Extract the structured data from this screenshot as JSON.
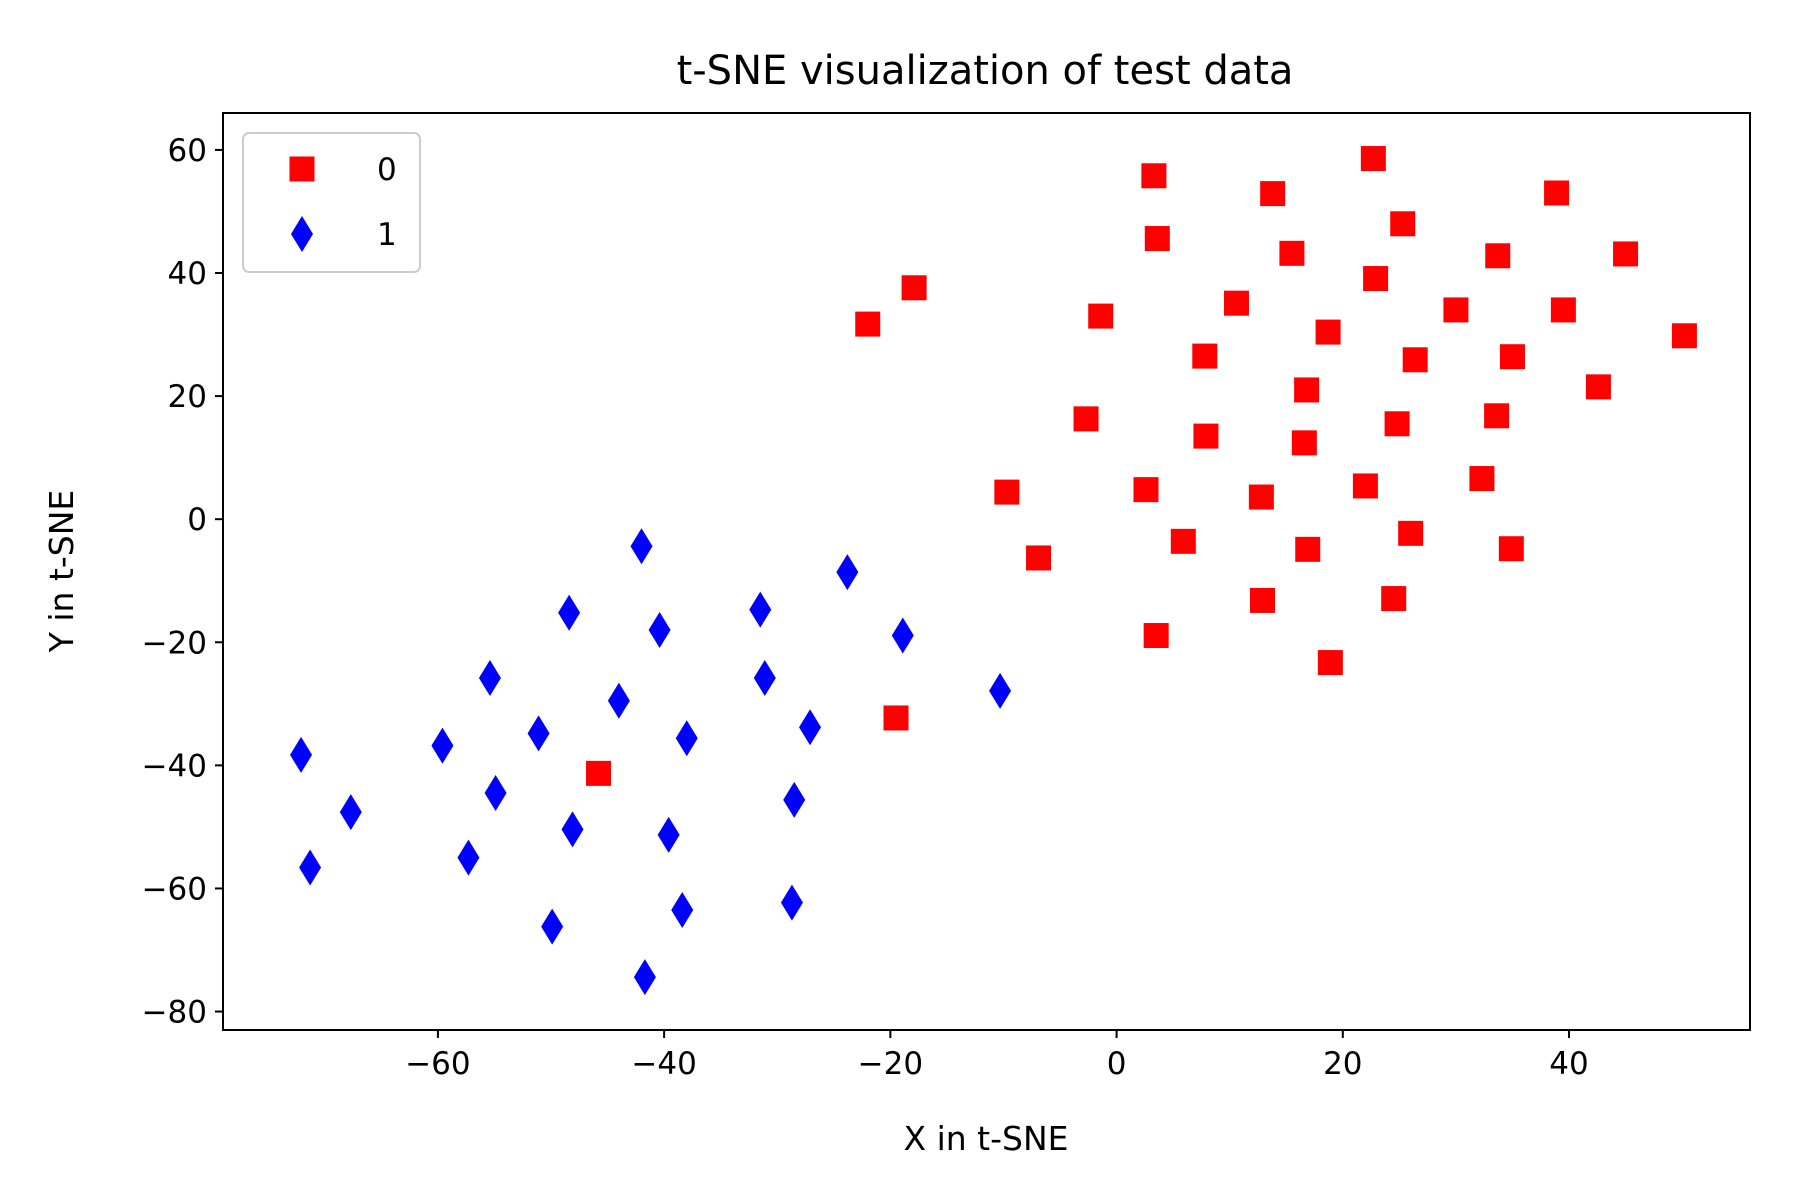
{
  "chart_data": {
    "type": "scatter",
    "title": "t-SNE visualization of test data",
    "xlabel": "X in t-SNE",
    "ylabel": "Y in t-SNE",
    "xlim": [
      -79,
      56
    ],
    "ylim": [
      -83,
      66
    ],
    "xticks": [
      -60,
      -40,
      -20,
      0,
      20,
      40
    ],
    "yticks": [
      60,
      40,
      20,
      0,
      -20,
      -40,
      -60,
      -80
    ],
    "xtick_labels": [
      "−60",
      "−40",
      "−20",
      "0",
      "20",
      "40"
    ],
    "ytick_labels": [
      "60",
      "40",
      "20",
      "0",
      "−20",
      "−40",
      "−60",
      "−80"
    ],
    "grid": false,
    "legend_position": "top-left",
    "series": [
      {
        "name": "0",
        "marker": "square",
        "color": "#ff0000",
        "points": [
          [
            3.3,
            55.8
          ],
          [
            3.6,
            45.6
          ],
          [
            13.8,
            52.9
          ],
          [
            22.7,
            58.6
          ],
          [
            25.3,
            48.0
          ],
          [
            15.5,
            43.2
          ],
          [
            22.9,
            39.1
          ],
          [
            38.9,
            53.0
          ],
          [
            33.7,
            42.8
          ],
          [
            45.0,
            43.1
          ],
          [
            -22.0,
            31.7
          ],
          [
            -17.9,
            37.6
          ],
          [
            -1.4,
            33.0
          ],
          [
            10.6,
            35.1
          ],
          [
            18.7,
            30.4
          ],
          [
            30.0,
            34.0
          ],
          [
            39.5,
            34.0
          ],
          [
            50.2,
            29.8
          ],
          [
            7.8,
            26.5
          ],
          [
            16.8,
            21.0
          ],
          [
            26.4,
            25.9
          ],
          [
            35.0,
            26.4
          ],
          [
            42.6,
            21.5
          ],
          [
            -2.7,
            16.3
          ],
          [
            7.9,
            13.5
          ],
          [
            16.6,
            12.4
          ],
          [
            24.8,
            15.5
          ],
          [
            33.6,
            16.8
          ],
          [
            -9.7,
            4.4
          ],
          [
            2.6,
            4.8
          ],
          [
            12.8,
            3.6
          ],
          [
            22.0,
            5.4
          ],
          [
            32.3,
            6.6
          ],
          [
            -6.9,
            -6.3
          ],
          [
            5.9,
            -3.6
          ],
          [
            16.9,
            -4.9
          ],
          [
            26.0,
            -2.3
          ],
          [
            34.9,
            -4.8
          ],
          [
            12.9,
            -13.2
          ],
          [
            24.5,
            -12.9
          ],
          [
            3.5,
            -18.9
          ],
          [
            18.9,
            -23.3
          ],
          [
            -19.5,
            -32.3
          ],
          [
            -45.8,
            -41.3
          ]
        ]
      },
      {
        "name": "1",
        "marker": "diamond",
        "color": "#0000ff",
        "points": [
          [
            -42.0,
            -4.4
          ],
          [
            -23.8,
            -8.6
          ],
          [
            -48.4,
            -15.2
          ],
          [
            -31.5,
            -14.7
          ],
          [
            -40.4,
            -18.0
          ],
          [
            -18.9,
            -18.9
          ],
          [
            -55.4,
            -25.8
          ],
          [
            -31.1,
            -25.8
          ],
          [
            -44.0,
            -29.5
          ],
          [
            -10.3,
            -27.9
          ],
          [
            -59.6,
            -36.8
          ],
          [
            -51.1,
            -34.8
          ],
          [
            -38.0,
            -35.6
          ],
          [
            -27.1,
            -33.8
          ],
          [
            -72.1,
            -38.3
          ],
          [
            -67.7,
            -47.6
          ],
          [
            -54.9,
            -44.5
          ],
          [
            -48.1,
            -50.4
          ],
          [
            -28.5,
            -45.6
          ],
          [
            -57.3,
            -55.0
          ],
          [
            -39.6,
            -51.3
          ],
          [
            -71.3,
            -56.6
          ],
          [
            -49.9,
            -66.2
          ],
          [
            -38.4,
            -63.5
          ],
          [
            -28.7,
            -62.3
          ],
          [
            -41.7,
            -74.4
          ]
        ]
      }
    ]
  }
}
